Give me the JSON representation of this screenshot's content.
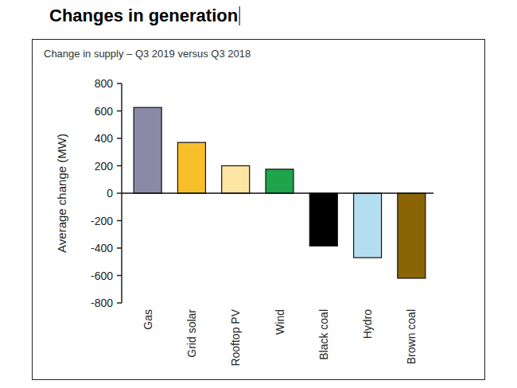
{
  "chart_data": {
    "type": "bar",
    "title": "Changes in generation",
    "subtitle": "Change in supply – Q3 2019 versus Q3 2018",
    "y_label": "Average change (MW)",
    "categories": [
      "Gas",
      "Grid solar",
      "Rooftop PV",
      "Wind",
      "Black coal",
      "Hydro",
      "Brown coal"
    ],
    "values": [
      625,
      370,
      200,
      175,
      -385,
      -470,
      -620
    ],
    "colors": [
      "#8a8aa6",
      "#f9bf2a",
      "#fde6a4",
      "#1fa34b",
      "#000000",
      "#b5ddf0",
      "#8b6406"
    ],
    "ylim": [
      -800,
      800
    ],
    "yticks": [
      -800,
      -600,
      -400,
      -200,
      0,
      200,
      400,
      600,
      800
    ],
    "grid": false
  }
}
